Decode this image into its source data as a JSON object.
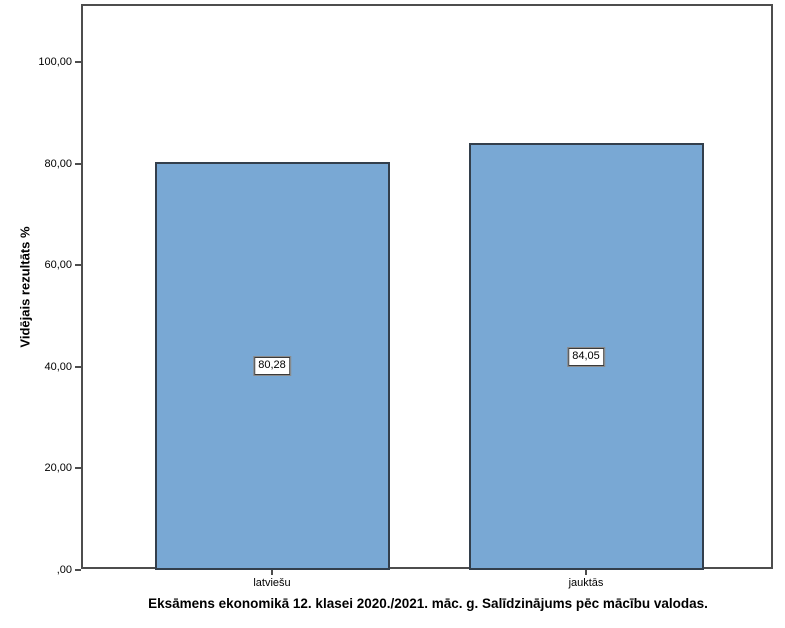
{
  "chart_data": {
    "type": "bar",
    "categories": [
      "latviešu",
      "jauktās"
    ],
    "values": [
      80.28,
      84.05
    ],
    "value_labels": [
      "80,28",
      "84,05"
    ],
    "title": "Eksāmens ekonomikā 12. klasei 2020./2021. māc. g. Salīdzinājums pēc mācību valodas.",
    "xlabel": "",
    "ylabel": "Vidējais rezultāts %",
    "ylim": [
      0,
      111.3
    ],
    "yticks": [
      0,
      20,
      40,
      60,
      80,
      100
    ],
    "ytick_labels": [
      ",00",
      "20,00",
      "40,00",
      "60,00",
      "80,00",
      "100,00"
    ],
    "grid": false,
    "legend": null,
    "bar_color": "#79a8d4",
    "bar_border_color": "#333f4c",
    "frame_color": "#4d4d4d",
    "value_label_style": "boxed-at-bar-middle"
  }
}
